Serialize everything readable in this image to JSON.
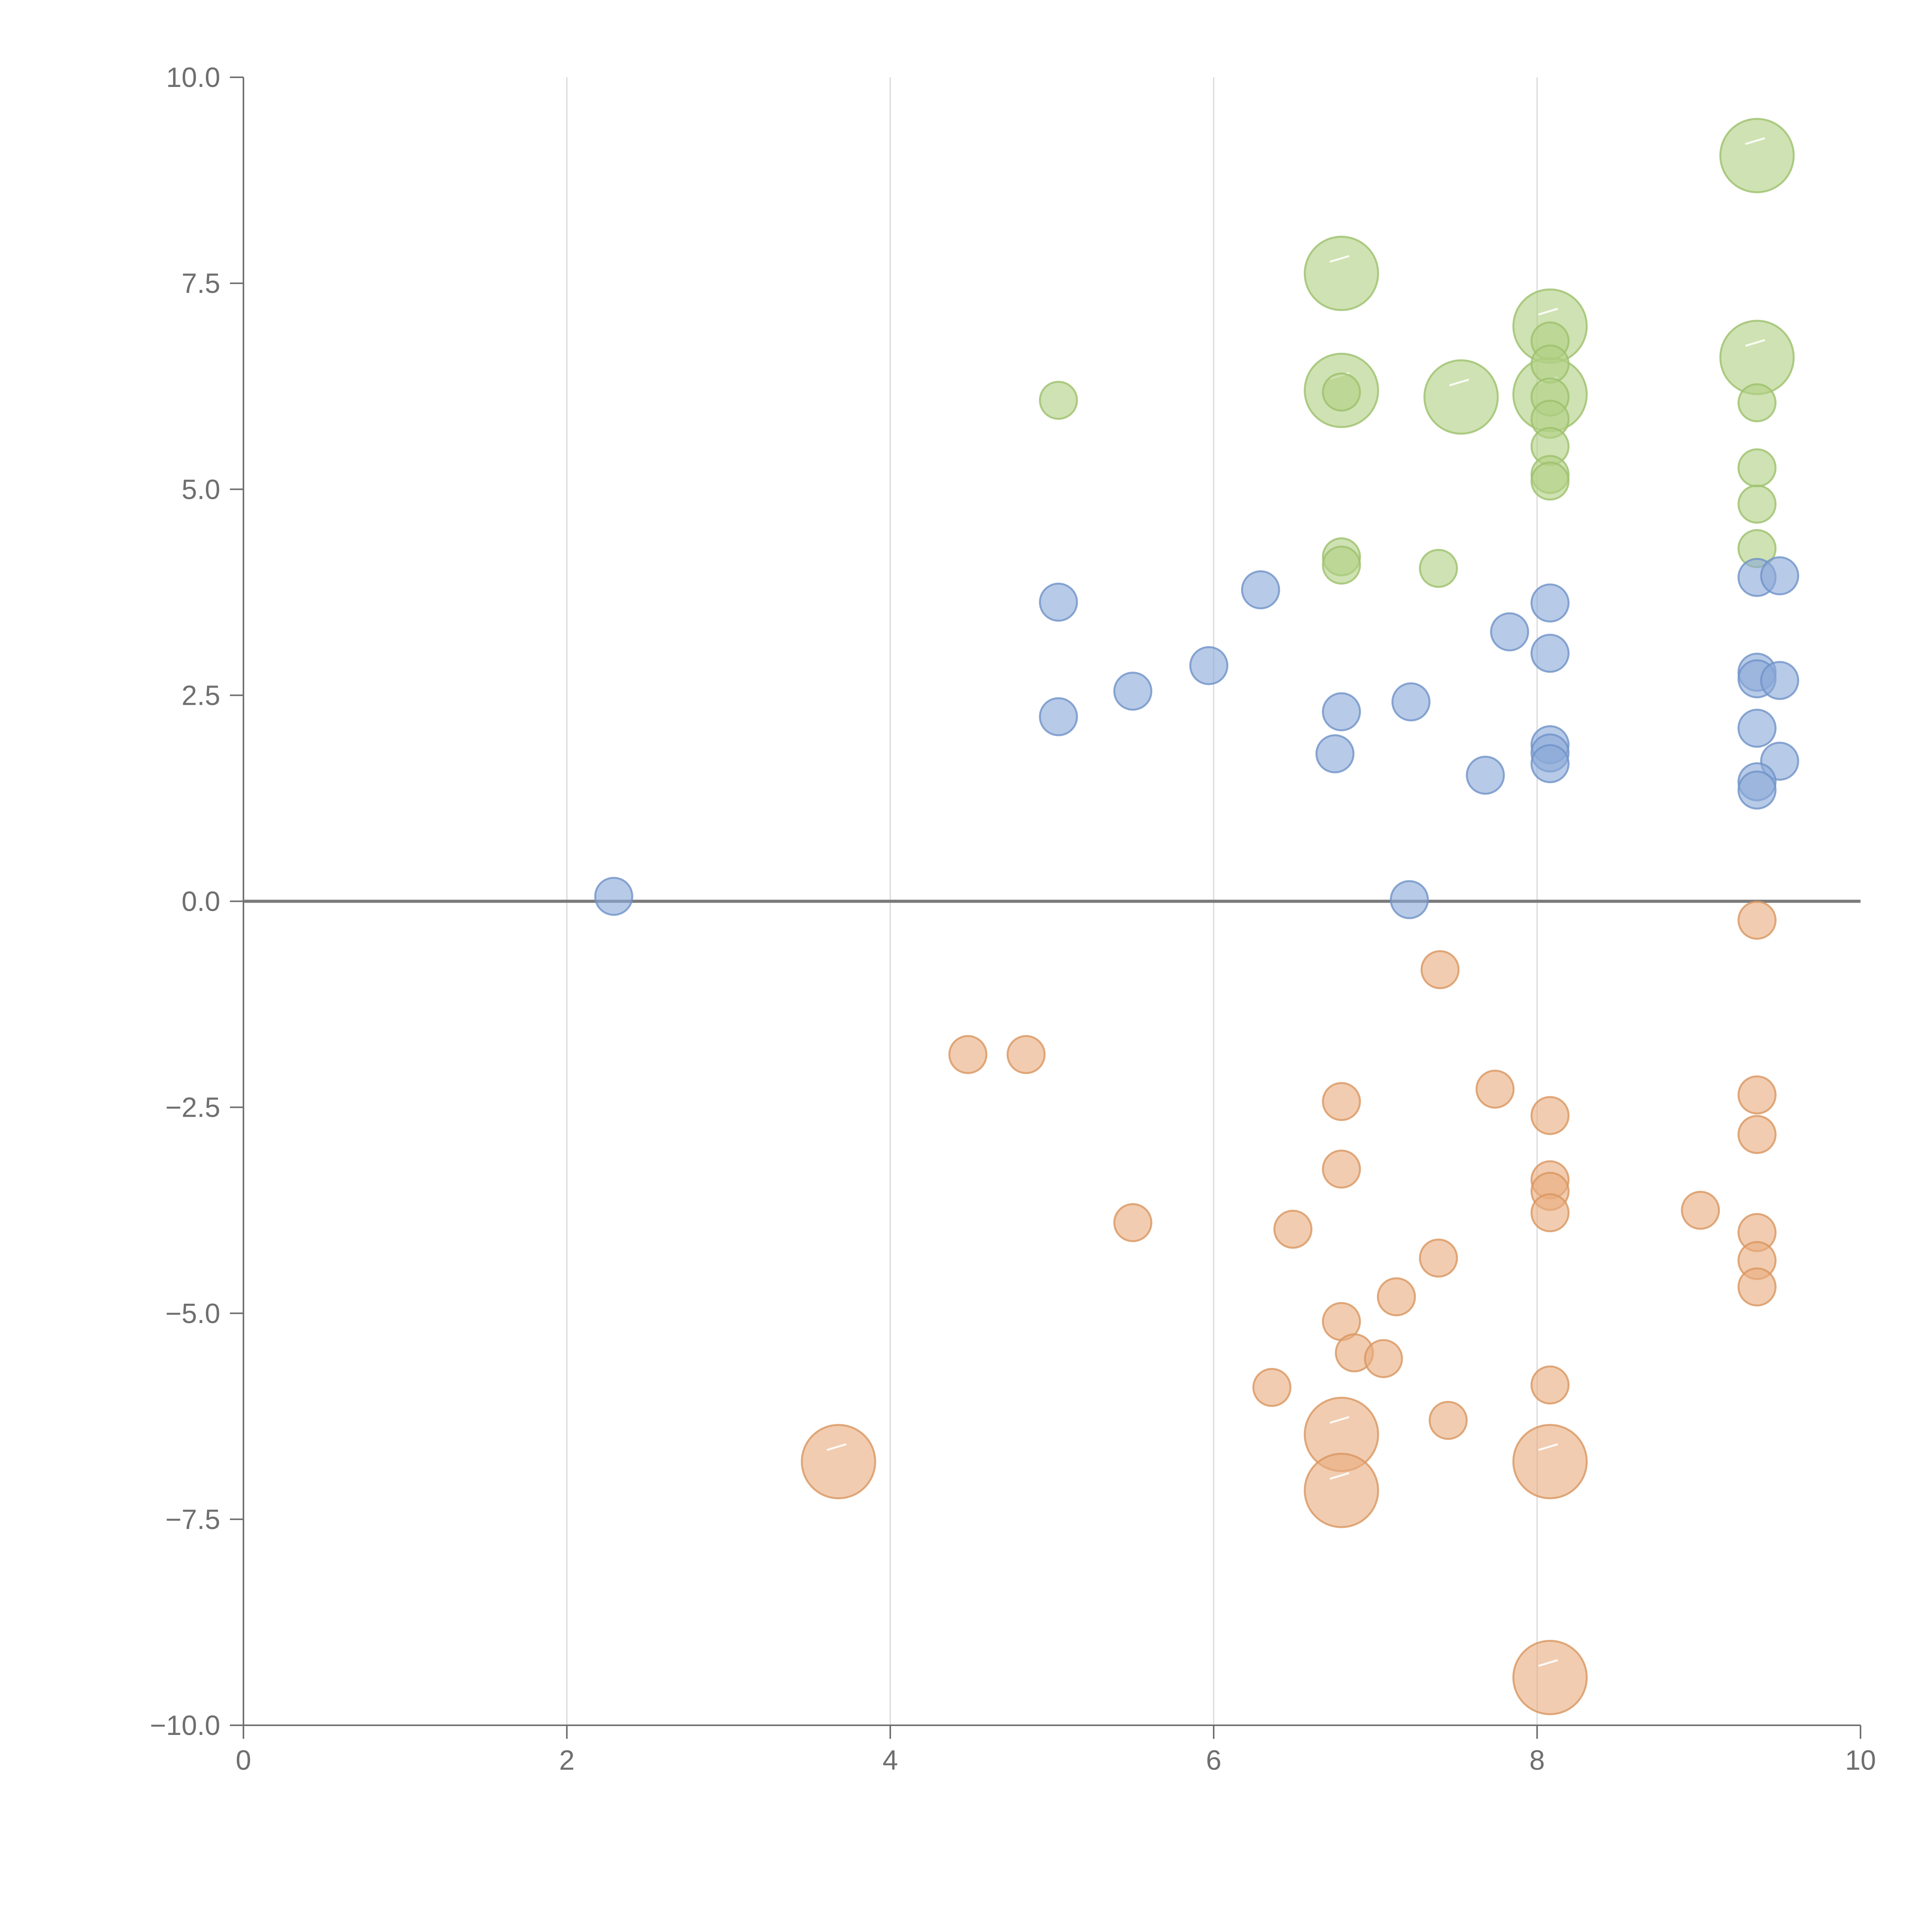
{
  "chart_data": {
    "type": "scatter",
    "title": "",
    "xlabel": "",
    "ylabel": "",
    "xlim": [
      0,
      10
    ],
    "ylim": [
      -10,
      10
    ],
    "grid": "vertical",
    "x_ticks": [
      0,
      2,
      4,
      6,
      8,
      10
    ],
    "x_tick_labels": [
      "0",
      "2",
      "4",
      "6",
      "8",
      "10"
    ],
    "y_ticks": [
      10,
      7.5,
      5,
      2.5,
      0,
      -2.5,
      -5,
      -7.5,
      -10
    ],
    "y_tick_labels": [
      "10.0",
      "7.5",
      "5.0",
      "2.5",
      "0.0",
      "−2.5",
      "−5.0",
      "−7.5",
      "−10.0"
    ],
    "series": [
      {
        "name": "green",
        "color": "#b2d084",
        "stroke": "#9cc06c",
        "points": [
          {
            "x": 9.36,
            "y": 9.05,
            "size": 3
          },
          {
            "x": 6.79,
            "y": 7.62,
            "size": 3
          },
          {
            "x": 8.08,
            "y": 6.98,
            "size": 3
          },
          {
            "x": 9.36,
            "y": 6.6,
            "size": 3
          },
          {
            "x": 6.79,
            "y": 6.2,
            "size": 3
          },
          {
            "x": 7.53,
            "y": 6.12,
            "size": 3
          },
          {
            "x": 8.08,
            "y": 6.15,
            "size": 3
          },
          {
            "x": 8.08,
            "y": 6.8,
            "size": 1
          },
          {
            "x": 8.08,
            "y": 6.52,
            "size": 1
          },
          {
            "x": 8.08,
            "y": 6.12,
            "size": 1
          },
          {
            "x": 8.08,
            "y": 5.85,
            "size": 1
          },
          {
            "x": 8.08,
            "y": 5.52,
            "size": 1
          },
          {
            "x": 8.08,
            "y": 5.18,
            "size": 1
          },
          {
            "x": 8.08,
            "y": 5.1,
            "size": 1
          },
          {
            "x": 6.79,
            "y": 6.18,
            "size": 1
          },
          {
            "x": 5.04,
            "y": 6.08,
            "size": 1
          },
          {
            "x": 9.36,
            "y": 6.05,
            "size": 1
          },
          {
            "x": 9.36,
            "y": 5.26,
            "size": 1
          },
          {
            "x": 9.36,
            "y": 4.82,
            "size": 1
          },
          {
            "x": 9.36,
            "y": 4.28,
            "size": 1
          },
          {
            "x": 6.79,
            "y": 4.18,
            "size": 1
          },
          {
            "x": 6.79,
            "y": 4.08,
            "size": 1
          },
          {
            "x": 7.39,
            "y": 4.04,
            "size": 1
          }
        ]
      },
      {
        "name": "blue",
        "color": "#8aa9d8",
        "stroke": "#6f92c8",
        "points": [
          {
            "x": 9.36,
            "y": 3.93,
            "size": 1
          },
          {
            "x": 9.5,
            "y": 3.95,
            "size": 1
          },
          {
            "x": 6.29,
            "y": 3.78,
            "size": 1
          },
          {
            "x": 5.04,
            "y": 3.63,
            "size": 1
          },
          {
            "x": 8.08,
            "y": 3.62,
            "size": 1
          },
          {
            "x": 7.83,
            "y": 3.27,
            "size": 1
          },
          {
            "x": 8.08,
            "y": 3.01,
            "size": 1
          },
          {
            "x": 5.97,
            "y": 2.86,
            "size": 1
          },
          {
            "x": 9.36,
            "y": 2.78,
            "size": 1
          },
          {
            "x": 9.36,
            "y": 2.7,
            "size": 1
          },
          {
            "x": 9.5,
            "y": 2.68,
            "size": 1
          },
          {
            "x": 5.5,
            "y": 2.55,
            "size": 1
          },
          {
            "x": 7.22,
            "y": 2.42,
            "size": 1
          },
          {
            "x": 6.79,
            "y": 2.3,
            "size": 1
          },
          {
            "x": 5.04,
            "y": 2.24,
            "size": 1
          },
          {
            "x": 9.36,
            "y": 2.1,
            "size": 1
          },
          {
            "x": 8.08,
            "y": 1.9,
            "size": 1
          },
          {
            "x": 8.08,
            "y": 1.8,
            "size": 1
          },
          {
            "x": 6.75,
            "y": 1.79,
            "size": 1
          },
          {
            "x": 9.5,
            "y": 1.7,
            "size": 1
          },
          {
            "x": 8.08,
            "y": 1.67,
            "size": 1
          },
          {
            "x": 7.68,
            "y": 1.53,
            "size": 1
          },
          {
            "x": 9.36,
            "y": 1.45,
            "size": 1
          },
          {
            "x": 9.36,
            "y": 1.35,
            "size": 1
          },
          {
            "x": 2.29,
            "y": 0.06,
            "size": 1
          },
          {
            "x": 7.21,
            "y": 0.02,
            "size": 1
          }
        ]
      },
      {
        "name": "orange",
        "color": "#e8ad80",
        "stroke": "#d99660",
        "points": [
          {
            "x": 9.36,
            "y": -0.23,
            "size": 1
          },
          {
            "x": 7.4,
            "y": -0.83,
            "size": 1
          },
          {
            "x": 4.48,
            "y": -1.86,
            "size": 1
          },
          {
            "x": 4.84,
            "y": -1.86,
            "size": 1
          },
          {
            "x": 7.74,
            "y": -2.28,
            "size": 1
          },
          {
            "x": 9.36,
            "y": -2.35,
            "size": 1
          },
          {
            "x": 6.79,
            "y": -2.43,
            "size": 1
          },
          {
            "x": 8.08,
            "y": -2.6,
            "size": 1
          },
          {
            "x": 9.36,
            "y": -2.83,
            "size": 1
          },
          {
            "x": 6.79,
            "y": -3.25,
            "size": 1
          },
          {
            "x": 8.08,
            "y": -3.38,
            "size": 1
          },
          {
            "x": 8.08,
            "y": -3.52,
            "size": 1
          },
          {
            "x": 8.08,
            "y": -3.78,
            "size": 1
          },
          {
            "x": 9.01,
            "y": -3.75,
            "size": 1
          },
          {
            "x": 5.5,
            "y": -3.9,
            "size": 1
          },
          {
            "x": 6.49,
            "y": -3.98,
            "size": 1
          },
          {
            "x": 9.36,
            "y": -4.02,
            "size": 1
          },
          {
            "x": 7.39,
            "y": -4.33,
            "size": 1
          },
          {
            "x": 9.36,
            "y": -4.36,
            "size": 1
          },
          {
            "x": 9.36,
            "y": -4.68,
            "size": 1
          },
          {
            "x": 7.13,
            "y": -4.8,
            "size": 1
          },
          {
            "x": 6.79,
            "y": -5.1,
            "size": 1
          },
          {
            "x": 6.87,
            "y": -5.48,
            "size": 1
          },
          {
            "x": 7.05,
            "y": -5.55,
            "size": 1
          },
          {
            "x": 8.08,
            "y": -5.87,
            "size": 1
          },
          {
            "x": 6.36,
            "y": -5.9,
            "size": 1
          },
          {
            "x": 7.45,
            "y": -6.3,
            "size": 1
          },
          {
            "x": 6.79,
            "y": -6.47,
            "size": 3
          },
          {
            "x": 3.68,
            "y": -6.8,
            "size": 3
          },
          {
            "x": 8.08,
            "y": -6.8,
            "size": 3
          },
          {
            "x": 6.79,
            "y": -7.15,
            "size": 3
          },
          {
            "x": 8.08,
            "y": -9.42,
            "size": 3
          }
        ]
      }
    ]
  }
}
